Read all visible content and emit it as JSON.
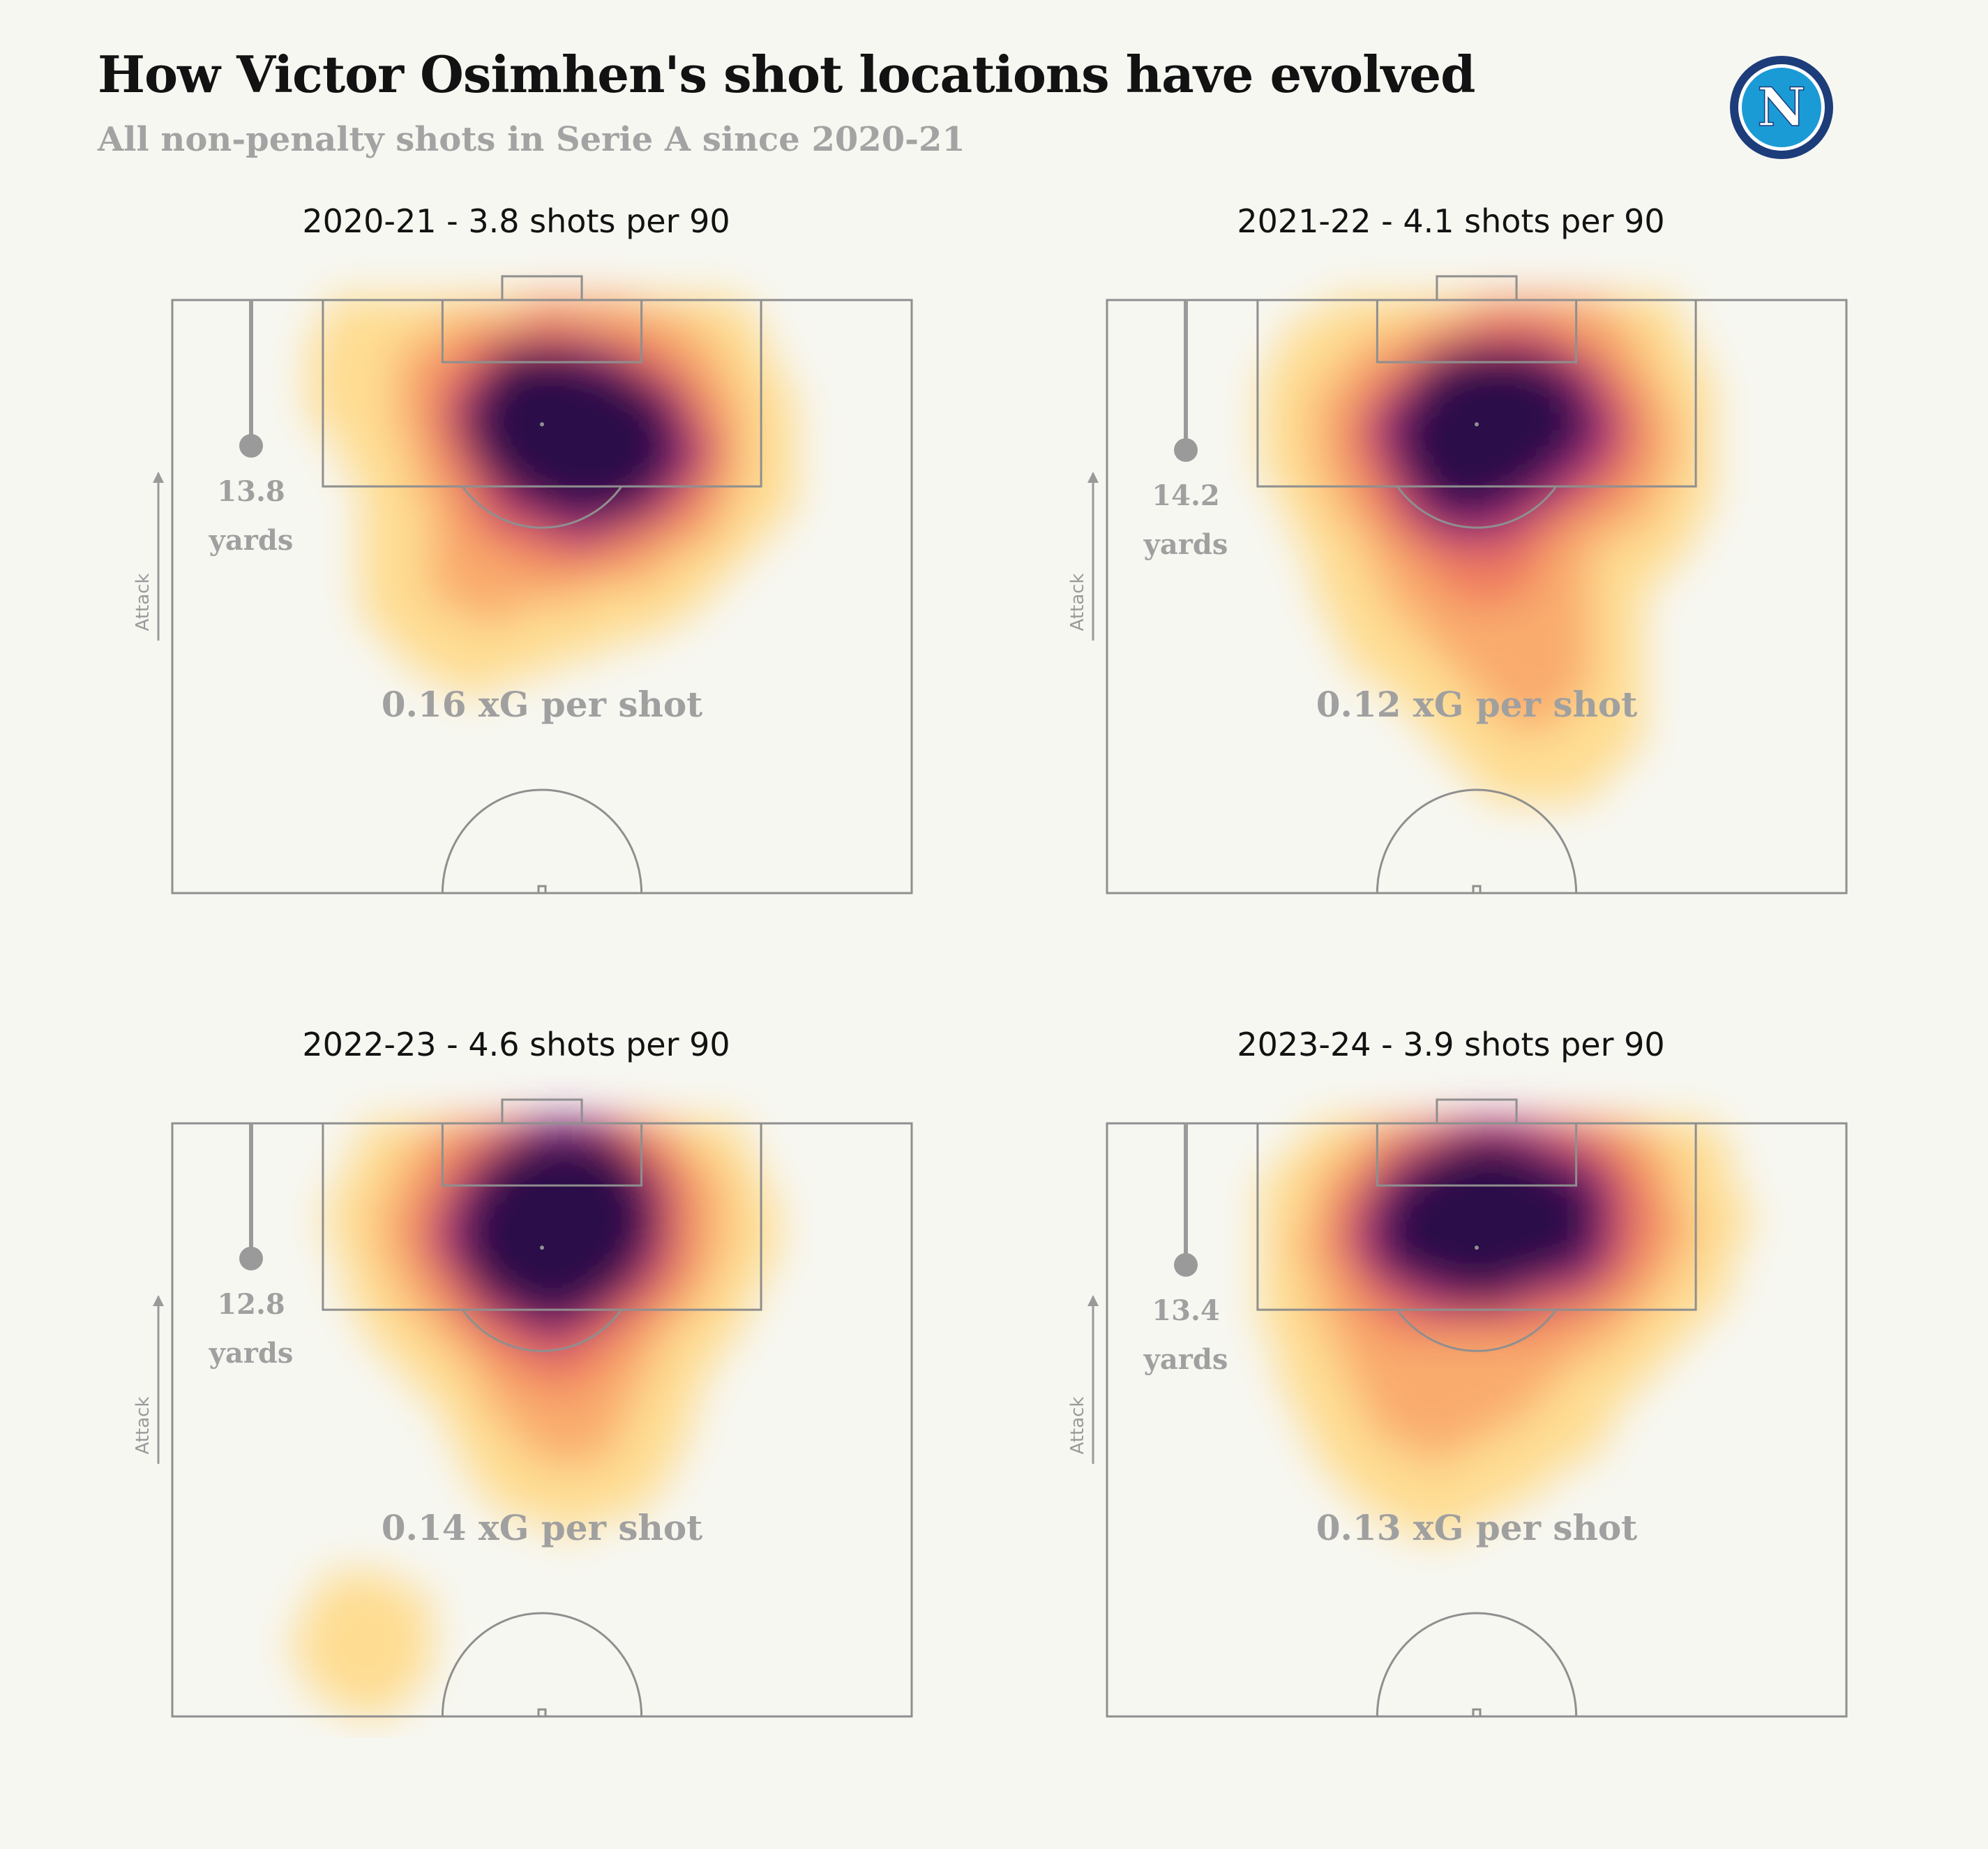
{
  "header": {
    "title": "How Victor Osimhen's shot locations have evolved",
    "subtitle": "All non-penalty shots in Serie A since 2020-21",
    "logo_letter": "N"
  },
  "colors": {
    "background": "#f7f7f2",
    "pitch_lines": "#8f8f8f",
    "logo_blue": "#1b9bd6",
    "logo_navy": "#1d3c7a",
    "heat_low": "#fff6b0",
    "heat_mid": "#f59a5e",
    "heat_high": "#b0306e",
    "heat_peak": "#1a0638"
  },
  "icons": {
    "logo": "napoli-badge-icon",
    "attack": "arrow-up-icon"
  },
  "attack_label": "Attack",
  "chart_data": [
    {
      "type": "heatmap",
      "title": "2020-21 - 3.8 shots per 90",
      "season": "2020-21",
      "shots_per_90": 3.8,
      "avg_distance_value": "13.8",
      "avg_distance_unit": "yards",
      "avg_distance_yards": 13.8,
      "xg_label": "0.16 xG per shot",
      "xg_per_shot": 0.16,
      "density_peaks_yards": [
        {
          "x": 0,
          "y": 9.5,
          "w": 1.0
        },
        {
          "x": 5,
          "y": 12.5,
          "w": 0.55
        },
        {
          "x": 9,
          "y": 13.5,
          "w": 0.5
        },
        {
          "x": -5,
          "y": 9,
          "w": 0.35
        },
        {
          "x": -1,
          "y": 15,
          "w": 0.35
        },
        {
          "x": -7,
          "y": 25,
          "w": 0.25
        },
        {
          "x": 5,
          "y": 21,
          "w": 0.2
        },
        {
          "x": 14,
          "y": 14,
          "w": 0.18
        },
        {
          "x": -14,
          "y": 6,
          "w": 0.15
        },
        {
          "x": 10,
          "y": 4,
          "w": 0.2
        }
      ]
    },
    {
      "type": "heatmap",
      "title": "2021-22 - 4.1 shots per 90",
      "season": "2021-22",
      "shots_per_90": 4.1,
      "avg_distance_value": "14.2",
      "avg_distance_unit": "yards",
      "avg_distance_yards": 14.2,
      "xg_label": "0.12 xG per shot",
      "xg_per_shot": 0.12,
      "density_peaks_yards": [
        {
          "x": 0,
          "y": 9,
          "w": 1.0
        },
        {
          "x": 7,
          "y": 10,
          "w": 0.55
        },
        {
          "x": -4,
          "y": 14,
          "w": 0.45
        },
        {
          "x": 0,
          "y": 17.5,
          "w": 0.45
        },
        {
          "x": 12,
          "y": 14,
          "w": 0.35
        },
        {
          "x": -10,
          "y": 10,
          "w": 0.3
        },
        {
          "x": 4,
          "y": 28,
          "w": 0.25
        },
        {
          "x": 6,
          "y": 36,
          "w": 0.2
        },
        {
          "x": -6,
          "y": 26,
          "w": 0.15
        },
        {
          "x": 8,
          "y": 3,
          "w": 0.2
        }
      ]
    },
    {
      "type": "heatmap",
      "title": "2022-23 - 4.6 shots per 90",
      "season": "2022-23",
      "shots_per_90": 4.6,
      "avg_distance_value": "12.8",
      "avg_distance_unit": "yards",
      "avg_distance_yards": 12.8,
      "xg_label": "0.14 xG per shot",
      "xg_per_shot": 0.14,
      "density_peaks_yards": [
        {
          "x": 1,
          "y": 8.5,
          "w": 1.0
        },
        {
          "x": 3,
          "y": 4,
          "w": 0.55
        },
        {
          "x": -2,
          "y": 12,
          "w": 0.5
        },
        {
          "x": 6,
          "y": 12,
          "w": 0.35
        },
        {
          "x": 8,
          "y": 7,
          "w": 0.3
        },
        {
          "x": -6,
          "y": 5,
          "w": 0.25
        },
        {
          "x": -9,
          "y": 10,
          "w": 0.25
        },
        {
          "x": 3,
          "y": 26,
          "w": 0.3
        },
        {
          "x": -1,
          "y": 18,
          "w": 0.2
        },
        {
          "x": 12,
          "y": 10,
          "w": 0.15
        },
        {
          "x": -16,
          "y": 46,
          "w": 0.12
        }
      ]
    },
    {
      "type": "heatmap",
      "title": "2023-24 - 3.9 shots per 90",
      "season": "2023-24",
      "shots_per_90": 3.9,
      "avg_distance_value": "13.4",
      "avg_distance_unit": "yards",
      "avg_distance_yards": 13.4,
      "xg_label": "0.13 xG per shot",
      "xg_per_shot": 0.13,
      "density_peaks_yards": [
        {
          "x": 0,
          "y": 8.5,
          "w": 1.0
        },
        {
          "x": -5,
          "y": 8.5,
          "w": 0.6
        },
        {
          "x": 6,
          "y": 9,
          "w": 0.55
        },
        {
          "x": 11,
          "y": 10,
          "w": 0.35
        },
        {
          "x": -10,
          "y": 10,
          "w": 0.3
        },
        {
          "x": 0,
          "y": 4,
          "w": 0.25
        },
        {
          "x": -8,
          "y": 20,
          "w": 0.2
        },
        {
          "x": 5,
          "y": 21,
          "w": 0.2
        },
        {
          "x": -4,
          "y": 27,
          "w": 0.2
        },
        {
          "x": 16,
          "y": 8,
          "w": 0.12
        },
        {
          "x": 8,
          "y": 2,
          "w": 0.2
        }
      ]
    }
  ]
}
